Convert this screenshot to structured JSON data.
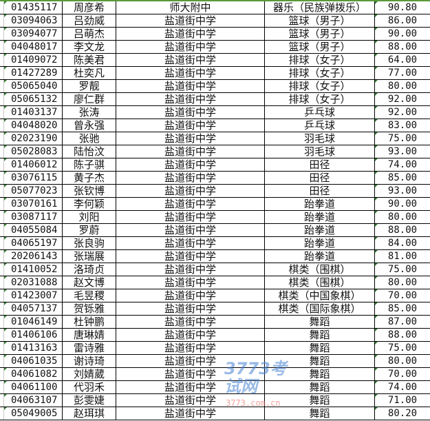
{
  "rows": [
    {
      "id": "01435117",
      "name": "周彦希",
      "school": "师大附中",
      "item": "器乐（民族弹拨乐）",
      "score": "90.80"
    },
    {
      "id": "03094063",
      "name": "吕劲威",
      "school": "盐道街中学",
      "item": "篮球（男子）",
      "score": "86.00"
    },
    {
      "id": "03094077",
      "name": "吕萌杰",
      "school": "盐道街中学",
      "item": "篮球（男子）",
      "score": "90.00"
    },
    {
      "id": "04048017",
      "name": "李文龙",
      "school": "盐道街中学",
      "item": "篮球（男子）",
      "score": "88.00"
    },
    {
      "id": "01409072",
      "name": "陈美君",
      "school": "盐道街中学",
      "item": "排球（女子）",
      "score": "64.00"
    },
    {
      "id": "01427289",
      "name": "杜奕凡",
      "school": "盐道街中学",
      "item": "排球（女子）",
      "score": "77.00"
    },
    {
      "id": "05065040",
      "name": "罗靓",
      "school": "盐道街中学",
      "item": "排球（女子）",
      "score": "80.00"
    },
    {
      "id": "05065132",
      "name": "廖仁群",
      "school": "盐道街中学",
      "item": "排球（女子）",
      "score": "92.00"
    },
    {
      "id": "01403137",
      "name": "张涛",
      "school": "盐道街中学",
      "item": "乒乓球",
      "score": "92.00"
    },
    {
      "id": "04048020",
      "name": "曾永强",
      "school": "盐道街中学",
      "item": "乒乓球",
      "score": "83.00"
    },
    {
      "id": "02023190",
      "name": "张驰",
      "school": "盐道街中学",
      "item": "羽毛球",
      "score": "75.00"
    },
    {
      "id": "05028083",
      "name": "陆怡汶",
      "school": "盐道街中学",
      "item": "羽毛球",
      "score": "93.00"
    },
    {
      "id": "01406012",
      "name": "陈子骐",
      "school": "盐道街中学",
      "item": "田径",
      "score": "74.00"
    },
    {
      "id": "03076115",
      "name": "黄子杰",
      "school": "盐道街中学",
      "item": "田径",
      "score": "85.00"
    },
    {
      "id": "05077023",
      "name": "张钦博",
      "school": "盐道街中学",
      "item": "田径",
      "score": "93.00"
    },
    {
      "id": "03070161",
      "name": "李何颖",
      "school": "盐道街中学",
      "item": "跆拳道",
      "score": "90.00"
    },
    {
      "id": "03087117",
      "name": "刘阳",
      "school": "盐道街中学",
      "item": "跆拳道",
      "score": "80.00"
    },
    {
      "id": "04055084",
      "name": "罗蔚",
      "school": "盐道街中学",
      "item": "跆拳道",
      "score": "88.00"
    },
    {
      "id": "04065197",
      "name": "张良驹",
      "school": "盐道街中学",
      "item": "跆拳道",
      "score": "84.00"
    },
    {
      "id": "20206143",
      "name": "张瑞展",
      "school": "盐道街中学",
      "item": "跆拳道",
      "score": "81.00"
    },
    {
      "id": "01410052",
      "name": "洛琦贞",
      "school": "盐道街中学",
      "item": "棋类（围棋）",
      "score": "75.00"
    },
    {
      "id": "02031088",
      "name": "赵文博",
      "school": "盐道街中学",
      "item": "棋类（围棋）",
      "score": "80.00"
    },
    {
      "id": "01423007",
      "name": "毛昱稷",
      "school": "盐道街中学",
      "item": "棋类（中国象棋）",
      "score": "70.00"
    },
    {
      "id": "04057137",
      "name": "贺铄雅",
      "school": "盐道街中学",
      "item": "棋类（国际象棋）",
      "score": "85.00"
    },
    {
      "id": "01046149",
      "name": "杜钟鹏",
      "school": "盐道街中学",
      "item": "舞蹈",
      "score": "87.00"
    },
    {
      "id": "01406106",
      "name": "唐琳婧",
      "school": "盐道街中学",
      "item": "舞蹈",
      "score": "88.00"
    },
    {
      "id": "01413163",
      "name": "雷诗雅",
      "school": "盐道街中学",
      "item": "舞蹈",
      "score": "75.00"
    },
    {
      "id": "04061035",
      "name": "谢诗琦",
      "school": "盐道街中学",
      "item": "舞蹈",
      "score": "80.00"
    },
    {
      "id": "04061082",
      "name": "刘婧葳",
      "school": "盐道街中学",
      "item": "舞蹈",
      "score": "70.00"
    },
    {
      "id": "04061100",
      "name": "代羽禾",
      "school": "盐道街中学",
      "item": "舞蹈",
      "score": "74.00"
    },
    {
      "id": "04063107",
      "name": "彭雯婕",
      "school": "盐道街中学",
      "item": "舞蹈",
      "score": "71.00"
    },
    {
      "id": "05049005",
      "name": "赵珥琪",
      "school": "盐道街中学",
      "item": "舞蹈",
      "score": "80.20"
    }
  ],
  "watermark": {
    "logo": "3773考试网",
    "url": "3773.com.cn"
  }
}
